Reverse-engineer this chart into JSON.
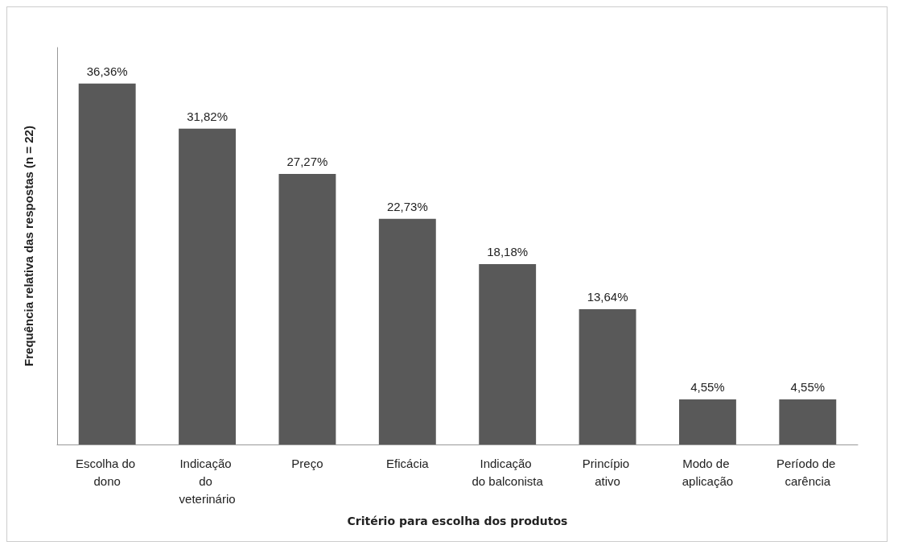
{
  "chart_data": {
    "type": "bar",
    "xlabel": "Critério para escolha dos produtos",
    "ylabel": "Frequência relativa das respostas (n = 22)",
    "categories": [
      "Escolha do dono",
      "Indicação do veterinário",
      "Preço",
      "Eficácia",
      "Indicação do balconista",
      "Princípio ativo",
      "Modo de aplicação",
      "Período de carência"
    ],
    "values": [
      36.36,
      31.82,
      27.27,
      22.73,
      18.18,
      13.64,
      4.55,
      4.55
    ],
    "value_labels": [
      "36,36%",
      "31,82%",
      "27,27%",
      "22,73%",
      "18,18%",
      "13,64%",
      "4,55%",
      "4,55%"
    ],
    "color": "#595959",
    "grid": false,
    "tick_labels": "x"
  }
}
